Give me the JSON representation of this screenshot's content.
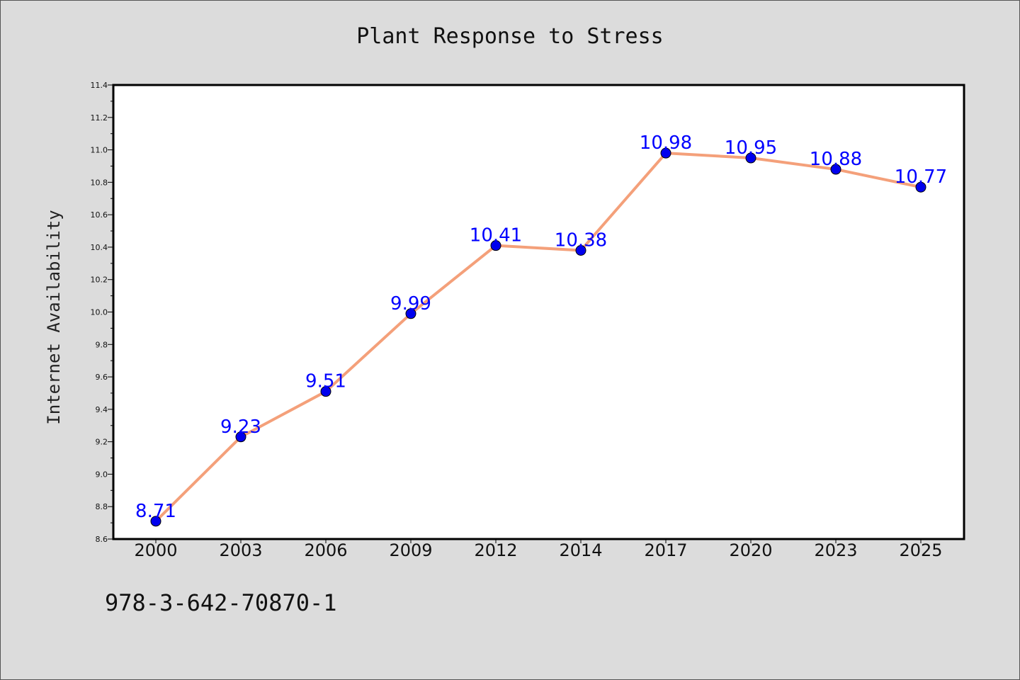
{
  "chart_data": {
    "type": "line",
    "title": "Plant Response to Stress",
    "xlabel": "",
    "ylabel": "Internet Availability",
    "categories": [
      "2000",
      "2003",
      "2006",
      "2009",
      "2012",
      "2014",
      "2017",
      "2020",
      "2023",
      "2025"
    ],
    "series": [
      {
        "values": [
          8.71,
          9.23,
          9.51,
          9.99,
          10.41,
          10.38,
          10.98,
          10.95,
          10.88,
          10.77
        ],
        "line_color": "#f4a07a",
        "marker_color": "#0000ee"
      }
    ],
    "data_labels": [
      "8.71",
      "9.23",
      "9.51",
      "9.99",
      "10.41",
      "10.38",
      "10.98",
      "10.95",
      "10.88",
      "10.77"
    ],
    "ylim": [
      8.6,
      11.4
    ],
    "y_ticks": [
      "8.6",
      "8.8",
      "9.0",
      "9.2",
      "9.4",
      "9.6",
      "9.8",
      "10.0",
      "10.2",
      "10.4",
      "10.6",
      "10.8",
      "11.0",
      "11.2",
      "11.4"
    ],
    "grid": false,
    "label_color": "#0000ff"
  },
  "footer": {
    "isbn": "978-3-642-70870-1"
  }
}
